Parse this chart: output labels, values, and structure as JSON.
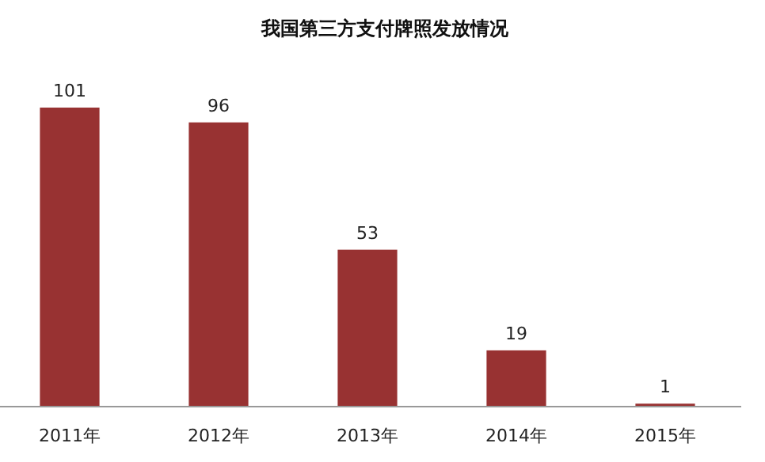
{
  "chart_data": {
    "type": "bar",
    "title": "我国第三方支付牌照发放情况",
    "categories": [
      "2011年",
      "2012年",
      "2013年",
      "2014年",
      "2015年"
    ],
    "values": [
      101,
      96,
      53,
      19,
      1
    ],
    "color": "#983232",
    "data_labels": true
  }
}
